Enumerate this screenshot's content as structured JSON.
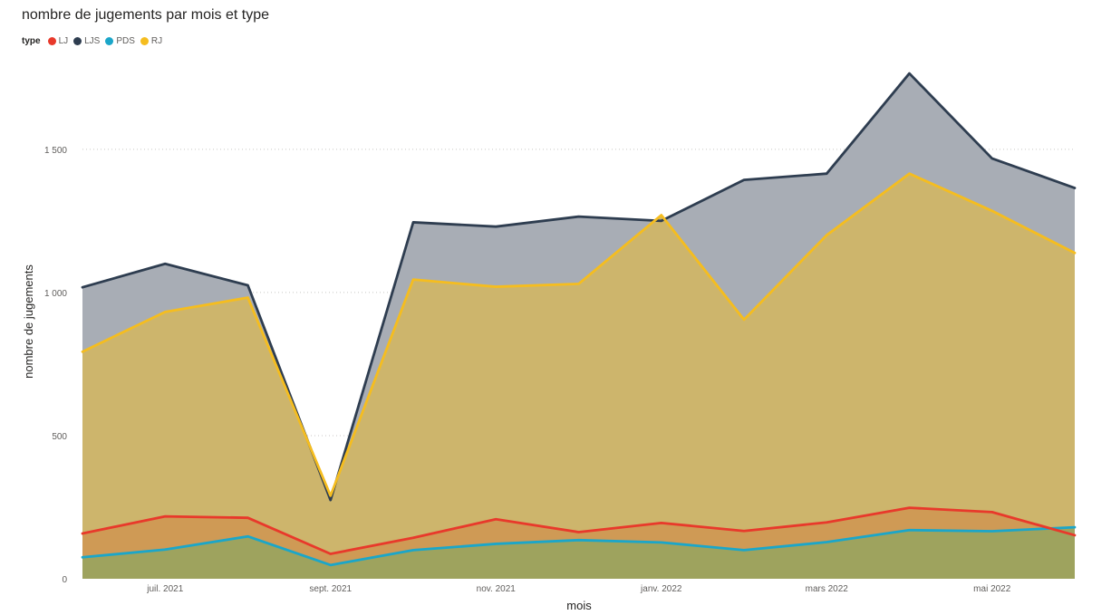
{
  "chart_data": {
    "type": "area",
    "title": "nombre de jugements par mois et type",
    "xlabel": "mois",
    "ylabel": "nombre de jugements",
    "legend_title": "type",
    "legend_position": "top-left",
    "grid": true,
    "ylim": [
      0,
      1800
    ],
    "yticks": [
      0,
      500,
      1000,
      1500
    ],
    "ytick_labels": [
      "0",
      "500",
      "1 000",
      "1 500"
    ],
    "x": [
      "2021-06",
      "2021-07",
      "2021-08",
      "2021-09",
      "2021-10",
      "2021-11",
      "2021-12",
      "2022-01",
      "2022-02",
      "2022-03",
      "2022-04",
      "2022-05",
      "2022-06"
    ],
    "xtick_labels": [
      {
        "month": "2021-07",
        "label": "juil. 2021"
      },
      {
        "month": "2021-09",
        "label": "sept. 2021"
      },
      {
        "month": "2021-11",
        "label": "nov. 2021"
      },
      {
        "month": "2022-01",
        "label": "janv. 2022"
      },
      {
        "month": "2022-03",
        "label": "mars 2022"
      },
      {
        "month": "2022-05",
        "label": "mai 2022"
      }
    ],
    "series": [
      {
        "name": "LJS",
        "color": "#2e3d50",
        "fill": "#a8adb5",
        "values": [
          1018,
          1100,
          1025,
          275,
          1245,
          1230,
          1265,
          1250,
          1393,
          1415,
          1765,
          1468,
          1365
        ]
      },
      {
        "name": "RJ",
        "color": "#f5bd1f",
        "fill": "#cdb56c",
        "values": [
          793,
          932,
          982,
          290,
          1045,
          1020,
          1030,
          1270,
          905,
          1200,
          1415,
          1285,
          1138
        ]
      },
      {
        "name": "LJ",
        "color": "#e8392b",
        "fill": "#cf9a55",
        "values": [
          158,
          218,
          213,
          87,
          143,
          208,
          163,
          195,
          167,
          197,
          248,
          233,
          152
        ]
      },
      {
        "name": "PDS",
        "color": "#1ba6c9",
        "fill": "#9ea35e",
        "values": [
          75,
          102,
          148,
          48,
          100,
          122,
          135,
          127,
          100,
          128,
          170,
          166,
          180
        ]
      }
    ],
    "legend_order": [
      "LJ",
      "LJS",
      "PDS",
      "RJ"
    ]
  }
}
